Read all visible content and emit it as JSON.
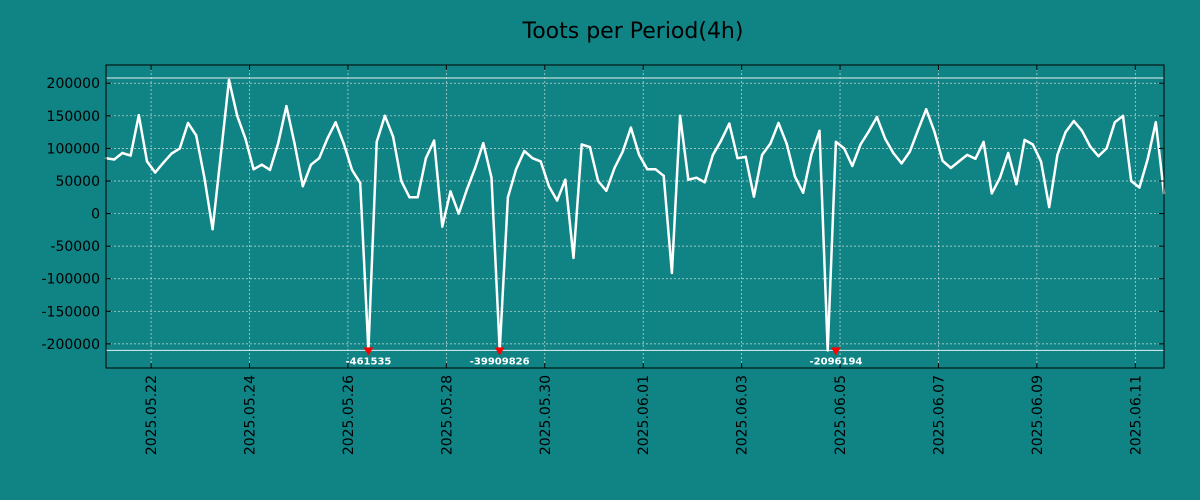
{
  "chart_data": {
    "type": "line",
    "title": "Toots per Period(4h)",
    "xlabel": "",
    "ylabel": "",
    "ylim": [
      -237000,
      228000
    ],
    "xlim": [
      "2025-05-21 02:00",
      "2025-06-11 14:00"
    ],
    "grid": true,
    "y_ticks": [
      200000,
      150000,
      100000,
      50000,
      0,
      -50000,
      -100000,
      -150000,
      -200000
    ],
    "x_ticks": [
      "2025.05.22",
      "2025.05.24",
      "2025.05.26",
      "2025.05.28",
      "2025.05.30",
      "2025.06.01",
      "2025.06.03",
      "2025.06.05",
      "2025.06.07",
      "2025.06.09",
      "2025.06.11"
    ],
    "clip_lines": {
      "upper": 208000,
      "lower": -210000
    },
    "series": [
      {
        "color": "#ffffff",
        "x": [
          "2025-05-21 02:00",
          "2025-05-21 06:00",
          "2025-05-21 10:00",
          "2025-05-21 14:00",
          "2025-05-21 18:00",
          "2025-05-21 22:00",
          "2025-05-22 02:00",
          "2025-05-22 06:00",
          "2025-05-22 10:00",
          "2025-05-22 14:00",
          "2025-05-22 18:00",
          "2025-05-22 22:00",
          "2025-05-23 02:00",
          "2025-05-23 06:00",
          "2025-05-23 10:00",
          "2025-05-23 14:00",
          "2025-05-23 18:00",
          "2025-05-23 22:00",
          "2025-05-24 02:00",
          "2025-05-24 06:00",
          "2025-05-24 10:00",
          "2025-05-24 14:00",
          "2025-05-24 18:00",
          "2025-05-24 22:00",
          "2025-05-25 02:00",
          "2025-05-25 06:00",
          "2025-05-25 10:00",
          "2025-05-25 14:00",
          "2025-05-25 18:00",
          "2025-05-25 22:00",
          "2025-05-26 02:00",
          "2025-05-26 06:00",
          "2025-05-26 10:00",
          "2025-05-26 14:00",
          "2025-05-26 18:00",
          "2025-05-26 22:00",
          "2025-05-27 02:00",
          "2025-05-27 06:00",
          "2025-05-27 10:00",
          "2025-05-27 14:00",
          "2025-05-27 18:00",
          "2025-05-27 22:00",
          "2025-05-28 02:00",
          "2025-05-28 06:00",
          "2025-05-28 10:00",
          "2025-05-28 14:00",
          "2025-05-28 18:00",
          "2025-05-28 22:00",
          "2025-05-29 02:00",
          "2025-05-29 06:00",
          "2025-05-29 10:00",
          "2025-05-29 14:00",
          "2025-05-29 18:00",
          "2025-05-29 22:00",
          "2025-05-30 02:00",
          "2025-05-30 06:00",
          "2025-05-30 10:00",
          "2025-05-30 14:00",
          "2025-05-30 18:00",
          "2025-05-30 22:00",
          "2025-05-31 02:00",
          "2025-05-31 06:00",
          "2025-05-31 10:00",
          "2025-05-31 14:00",
          "2025-05-31 18:00",
          "2025-05-31 22:00",
          "2025-06-01 02:00",
          "2025-06-01 06:00",
          "2025-06-01 10:00",
          "2025-06-01 14:00",
          "2025-06-01 18:00",
          "2025-06-01 22:00",
          "2025-06-02 02:00",
          "2025-06-02 06:00",
          "2025-06-02 10:00",
          "2025-06-02 14:00",
          "2025-06-02 18:00",
          "2025-06-02 22:00",
          "2025-06-03 02:00",
          "2025-06-03 06:00",
          "2025-06-03 10:00",
          "2025-06-03 14:00",
          "2025-06-03 18:00",
          "2025-06-03 22:00",
          "2025-06-04 02:00",
          "2025-06-04 06:00",
          "2025-06-04 10:00",
          "2025-06-04 14:00",
          "2025-06-04 18:00",
          "2025-06-04 22:00",
          "2025-06-05 02:00",
          "2025-06-05 06:00",
          "2025-06-05 10:00",
          "2025-06-05 14:00",
          "2025-06-05 18:00",
          "2025-06-05 22:00",
          "2025-06-06 02:00",
          "2025-06-06 06:00",
          "2025-06-06 10:00",
          "2025-06-06 14:00",
          "2025-06-06 18:00",
          "2025-06-06 22:00",
          "2025-06-07 02:00",
          "2025-06-07 06:00",
          "2025-06-07 10:00",
          "2025-06-07 14:00",
          "2025-06-07 18:00",
          "2025-06-07 22:00",
          "2025-06-08 02:00",
          "2025-06-08 06:00",
          "2025-06-08 10:00",
          "2025-06-08 14:00",
          "2025-06-08 18:00",
          "2025-06-08 22:00",
          "2025-06-09 02:00",
          "2025-06-09 06:00",
          "2025-06-09 10:00",
          "2025-06-09 14:00",
          "2025-06-09 18:00",
          "2025-06-09 22:00",
          "2025-06-10 02:00",
          "2025-06-10 06:00",
          "2025-06-10 10:00",
          "2025-06-10 14:00",
          "2025-06-10 18:00",
          "2025-06-10 22:00",
          "2025-06-11 02:00",
          "2025-06-11 06:00",
          "2025-06-11 10:00",
          "2025-06-11 14:00"
        ],
        "values": [
          85000,
          83000,
          93000,
          89000,
          151000,
          80000,
          63000,
          78000,
          92000,
          100000,
          139000,
          120000,
          55000,
          -24000,
          90000,
          205000,
          150000,
          115000,
          68000,
          75000,
          67000,
          108000,
          165000,
          107000,
          42000,
          75000,
          85000,
          115000,
          140000,
          107000,
          67000,
          47000,
          -210000,
          110000,
          150000,
          118000,
          50000,
          25000,
          25000,
          85000,
          112000,
          -20000,
          34000,
          0,
          37000,
          70000,
          108000,
          55000,
          -210000,
          25000,
          68000,
          96000,
          85000,
          80000,
          42000,
          20000,
          52000,
          -68000,
          106000,
          102000,
          50000,
          35000,
          70000,
          95000,
          132000,
          90000,
          68000,
          68000,
          58000,
          -91000,
          150000,
          52000,
          55000,
          48000,
          90000,
          112000,
          138000,
          85000,
          87000,
          26000,
          90000,
          107000,
          139000,
          107000,
          57000,
          32000,
          90000,
          127000,
          -210000,
          110000,
          100000,
          73000,
          106000,
          126000,
          148000,
          115000,
          93000,
          77000,
          95000,
          128000,
          160000,
          126000,
          81000,
          70000,
          80000,
          90000,
          84000,
          110000,
          31000,
          55000,
          93000,
          45000,
          113000,
          106000,
          80000,
          10000,
          90000,
          125000,
          142000,
          127000,
          103000,
          88000,
          100000,
          140000,
          150000,
          50000,
          40000,
          83000,
          140000,
          31000
        ]
      }
    ],
    "annotations": [
      {
        "text": "-461535",
        "x": "2025-05-26 10:00",
        "y": -210000
      },
      {
        "text": "-39909826",
        "x": "2025-05-29 02:00",
        "y": -210000
      },
      {
        "text": "-2096194",
        "x": "2025-06-04 22:00",
        "y": -210000
      }
    ],
    "colors": {
      "background": "#108385",
      "line": "#ffffff",
      "marker": "#ff0000",
      "grid": "#c8dcdc",
      "axes": "#000000"
    }
  }
}
